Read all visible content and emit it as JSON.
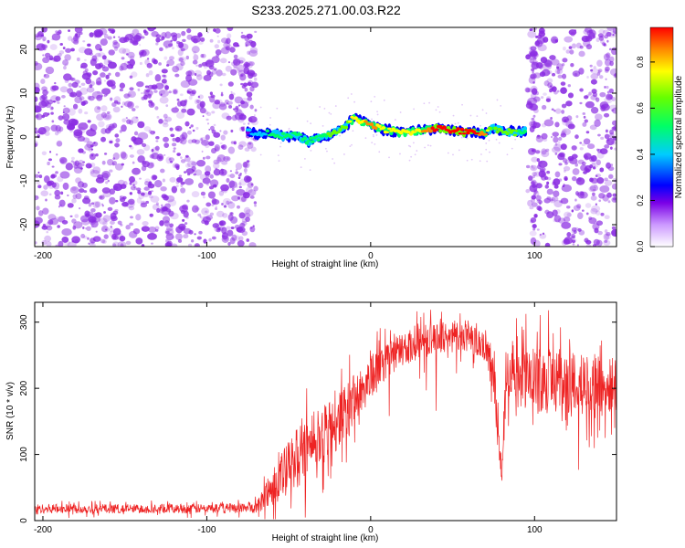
{
  "title": "S233.2025.271.00.03.R22",
  "chart_data": [
    {
      "type": "heatmap",
      "title": "S233.2025.271.00.03.R22",
      "xlabel": "Height of straight line (km)",
      "ylabel": "Frequency (Hz)",
      "xlim": [
        -205,
        150
      ],
      "ylim": [
        -25,
        25
      ],
      "xticks": [
        -200,
        -100,
        0,
        100
      ],
      "yticks": [
        -20,
        -10,
        0,
        10,
        20
      ],
      "colorbar": {
        "label": "Normalized spectral amplitude",
        "range": [
          0.0,
          0.95
        ],
        "ticks": [
          0.0,
          0.2,
          0.4,
          0.6,
          0.8
        ]
      },
      "noise_regions_km": [
        [
          -205,
          -70
        ],
        [
          95,
          150
        ]
      ],
      "ridge": {
        "x": [
          -75,
          -68,
          -60,
          -52,
          -45,
          -38,
          -30,
          -22,
          -15,
          -10,
          -5,
          0,
          5,
          10,
          20,
          30,
          40,
          50,
          60,
          70,
          75,
          80,
          88,
          95
        ],
        "y": [
          1.5,
          0.5,
          1.0,
          0.0,
          0.5,
          -1.0,
          0.0,
          1.0,
          2.5,
          4.5,
          3.5,
          3.0,
          2.0,
          1.5,
          1.0,
          1.5,
          2.0,
          1.5,
          1.0,
          1.0,
          2.0,
          1.5,
          1.0,
          1.5
        ],
        "amplitude": [
          0.3,
          0.35,
          0.45,
          0.5,
          0.5,
          0.45,
          0.5,
          0.55,
          0.6,
          0.7,
          0.75,
          0.8,
          0.75,
          0.7,
          0.7,
          0.75,
          0.9,
          0.95,
          0.95,
          0.8,
          0.5,
          0.6,
          0.55,
          0.45
        ]
      }
    },
    {
      "type": "line",
      "xlabel": "Height of straight line (km)",
      "ylabel": "SNR (10 * v/v)",
      "xlim": [
        -205,
        150
      ],
      "ylim": [
        0,
        330
      ],
      "xticks": [
        -200,
        -100,
        0,
        100
      ],
      "yticks": [
        0,
        100,
        200,
        300
      ],
      "color": "#ee2222",
      "envelope": {
        "x": [
          -205,
          -150,
          -100,
          -70,
          -60,
          -50,
          -40,
          -30,
          -20,
          -10,
          0,
          10,
          20,
          30,
          40,
          50,
          60,
          70,
          75,
          78,
          80,
          82,
          85,
          90,
          95,
          100,
          110,
          120,
          130,
          140,
          150
        ],
        "mean": [
          18,
          18,
          18,
          20,
          50,
          80,
          110,
          130,
          150,
          185,
          215,
          245,
          260,
          270,
          275,
          280,
          275,
          265,
          220,
          140,
          65,
          180,
          230,
          225,
          215,
          210,
          215,
          210,
          205,
          200,
          205
        ],
        "spread": [
          10,
          10,
          10,
          12,
          45,
          60,
          70,
          70,
          60,
          55,
          50,
          40,
          35,
          35,
          35,
          30,
          30,
          35,
          50,
          60,
          20,
          60,
          50,
          60,
          70,
          70,
          75,
          70,
          65,
          70,
          60
        ]
      }
    }
  ],
  "colors": {
    "noise": "#8a2be2",
    "line": "#ee2222"
  }
}
